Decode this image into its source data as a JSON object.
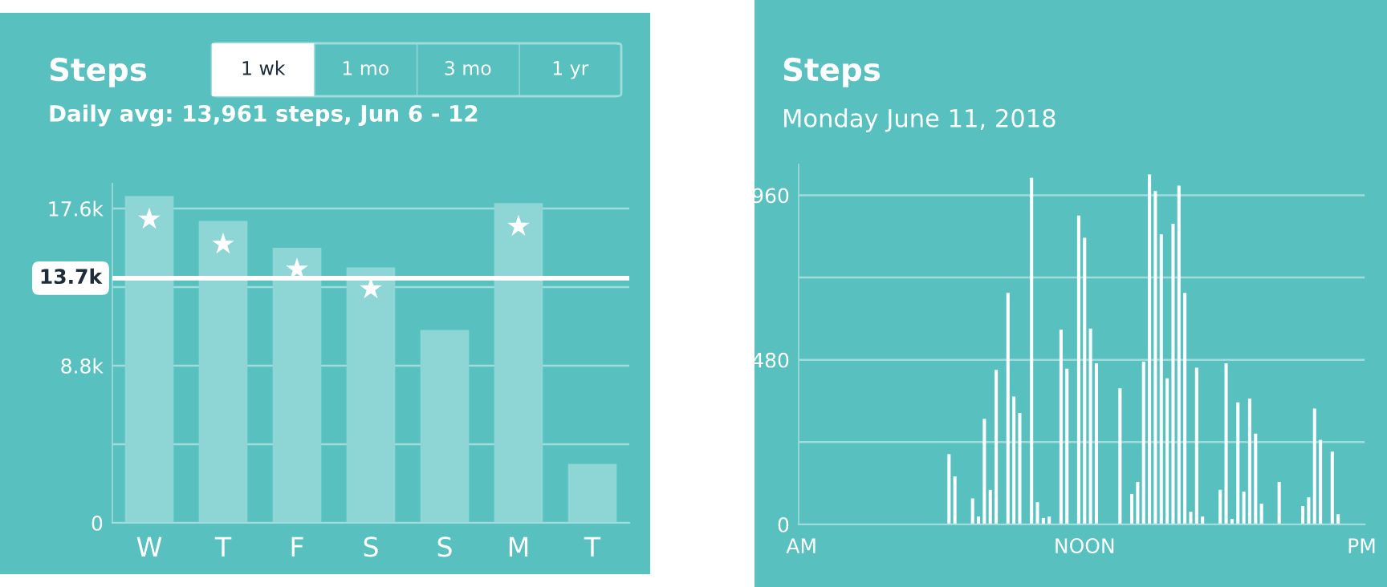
{
  "chart_data": [
    {
      "type": "bar",
      "title": "Steps",
      "subtitle": "Daily avg: 13,961 steps, Jun 6 - 12",
      "annotations": [
        "1 wk",
        "1 mo",
        "3 mo",
        "1 yr"
      ],
      "categories": [
        "W",
        "T",
        "F",
        "S",
        "S",
        "M",
        "T"
      ],
      "series": [
        {
          "type": "bar",
          "color": "#8ed5d5",
          "values": [
            18300,
            16900,
            15400,
            14300,
            10800,
            17900,
            3300
          ]
        },
        {
          "type": "scatter",
          "color": "#ffffff",
          "marker": "star",
          "x": [
            "W",
            "T",
            "F",
            "S",
            "S",
            "M",
            "T"
          ],
          "values": [
            17000,
            15600,
            14200,
            13100,
            null,
            16600,
            null
          ]
        }
      ],
      "ylim": [
        0,
        19000
      ],
      "yticks": [
        0,
        {
          "value": 4400,
          "label": null
        },
        {
          "value": 8800,
          "label": "8.8k"
        },
        {
          "value": 13200,
          "label": null
        },
        {
          "value": 17600,
          "label": "17.6k"
        }
      ],
      "grid": "y",
      "ref_lines": [
        {
          "axis": "y",
          "value": 13700,
          "label": "13.7k",
          "color": "#ffffff"
        }
      ]
    },
    {
      "type": "bar",
      "title": "Steps",
      "subtitle": "Monday June 11, 2018",
      "categories": [
        "AM",
        null,
        null,
        null,
        null,
        null,
        null,
        null,
        null,
        null,
        null,
        null,
        null,
        null,
        null,
        null,
        null,
        null,
        null,
        null,
        null,
        null,
        null,
        null,
        null,
        null,
        null,
        null,
        null,
        null,
        null,
        null,
        null,
        null,
        null,
        null,
        null,
        null,
        null,
        null,
        null,
        null,
        null,
        null,
        null,
        null,
        null,
        null,
        "NOON",
        null,
        null,
        null,
        null,
        null,
        null,
        null,
        null,
        null,
        null,
        null,
        null,
        null,
        null,
        null,
        null,
        null,
        null,
        null,
        null,
        null,
        null,
        null,
        null,
        null,
        null,
        null,
        null,
        null,
        null,
        null,
        null,
        null,
        null,
        null,
        null,
        null,
        null,
        null,
        null,
        null,
        null,
        null,
        null,
        null,
        null,
        "PM"
      ],
      "series": [
        {
          "color": "#ffffff",
          "values": [
            0,
            0,
            0,
            0,
            0,
            0,
            0,
            0,
            0,
            0,
            0,
            0,
            0,
            0,
            0,
            0,
            0,
            0,
            0,
            0,
            0,
            0,
            0,
            0,
            0,
            205,
            140,
            0,
            0,
            76,
            23,
            308,
            101,
            451,
            0,
            675,
            373,
            325,
            0,
            1011,
            65,
            19,
            23,
            0,
            568,
            454,
            0,
            901,
            836,
            571,
            470,
            0,
            0,
            0,
            397,
            0,
            89,
            124,
            475,
            1021,
            972,
            846,
            426,
            877,
            988,
            675,
            37,
            457,
            23,
            0,
            0,
            101,
            470,
            16,
            356,
            96,
            367,
            265,
            61,
            0,
            0,
            124,
            0,
            0,
            0,
            54,
            79,
            338,
            247,
            0,
            213,
            30,
            0,
            0,
            0,
            0
          ]
        }
      ],
      "ylim": [
        0,
        1050
      ],
      "yticks": [
        0,
        {
          "value": 240,
          "label": null
        },
        480,
        {
          "value": 720,
          "label": null
        },
        960
      ],
      "grid": "y"
    }
  ]
}
